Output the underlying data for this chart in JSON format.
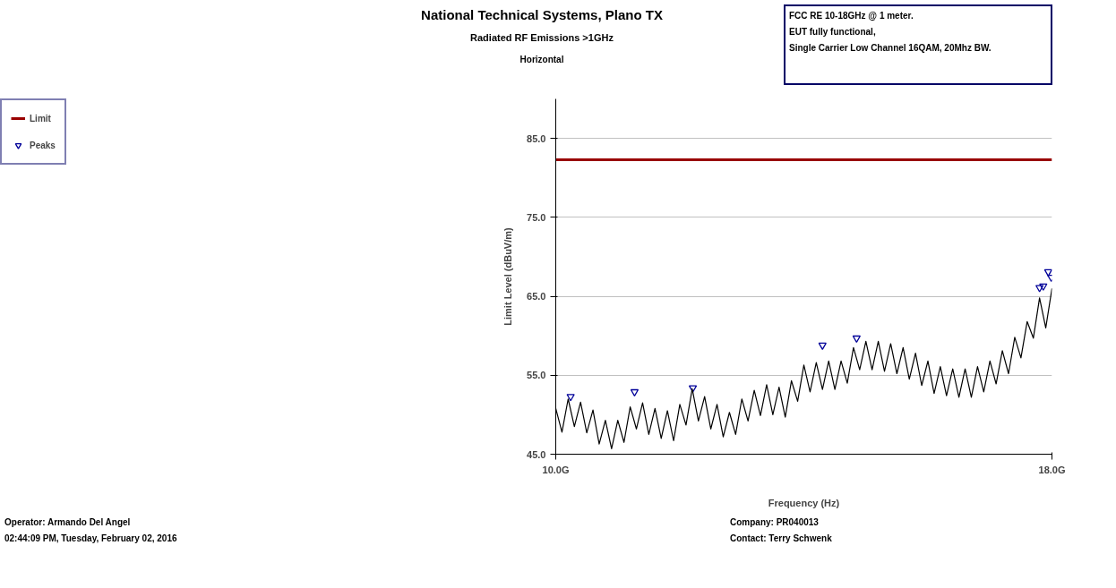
{
  "chart_data": {
    "type": "line",
    "title": "National Technical Systems, Plano TX",
    "subtitle": "Radiated RF Emissions >1GHz",
    "xlabel": "Frequency (Hz)",
    "ylabel": "Limit Level (dBuV/m)",
    "xlim": [
      10.0,
      18.0
    ],
    "xticks": [
      {
        "value": 10.0,
        "label": "10.0G"
      },
      {
        "value": 18.0,
        "label": "18.0G"
      }
    ],
    "ylim": [
      45.0,
      90.0
    ],
    "yticks": [
      {
        "value": 45,
        "label": "45.0"
      },
      {
        "value": 55,
        "label": "55.0"
      },
      {
        "value": 65,
        "label": "65.0"
      },
      {
        "value": 75,
        "label": "75.0"
      },
      {
        "value": 85,
        "label": "85.0"
      }
    ],
    "grid": "y",
    "legend": "top left",
    "series": [
      {
        "name": "Limit",
        "color": "#990000",
        "x": [
          10.0,
          18.0
        ],
        "values": [
          82.3,
          82.3
        ]
      },
      {
        "name": "Peaks",
        "type": "scatter",
        "marker": "triangle",
        "color": "#000099",
        "x": [
          10.24,
          11.27,
          12.21,
          14.3,
          14.85,
          17.8,
          17.86,
          17.94,
          17.99
        ],
        "values": [
          52.3,
          52.9,
          53.4,
          58.8,
          59.7,
          66.1,
          66.3,
          68.1,
          67.4
        ]
      },
      {
        "color": "#000000",
        "x": [
          10.0,
          10.1,
          10.2,
          10.3,
          10.4,
          10.5,
          10.6,
          10.7,
          10.8,
          10.9,
          11.0,
          11.1,
          11.2,
          11.3,
          11.4,
          11.5,
          11.6,
          11.7,
          11.8,
          11.9,
          12.0,
          12.1,
          12.2,
          12.3,
          12.4,
          12.5,
          12.6,
          12.7,
          12.8,
          12.9,
          13.0,
          13.1,
          13.2,
          13.3,
          13.4,
          13.5,
          13.6,
          13.7,
          13.8,
          13.9,
          14.0,
          14.1,
          14.2,
          14.3,
          14.4,
          14.5,
          14.6,
          14.7,
          14.8,
          14.9,
          15.0,
          15.1,
          15.2,
          15.3,
          15.4,
          15.5,
          15.6,
          15.7,
          15.8,
          15.9,
          16.0,
          16.1,
          16.2,
          16.3,
          16.4,
          16.5,
          16.6,
          16.7,
          16.8,
          16.9,
          17.0,
          17.1,
          17.2,
          17.3,
          17.4,
          17.5,
          17.6,
          17.7,
          17.8,
          17.9,
          18.0
        ],
        "values": [
          50.8,
          47.8,
          52.0,
          48.5,
          51.6,
          47.7,
          50.6,
          46.3,
          49.3,
          45.7,
          49.3,
          46.5,
          51.0,
          48.2,
          51.5,
          47.5,
          50.8,
          47.0,
          50.5,
          46.7,
          51.3,
          48.7,
          53.3,
          49.2,
          52.3,
          48.2,
          51.3,
          47.2,
          50.3,
          47.5,
          52.0,
          49.2,
          53.1,
          49.9,
          53.8,
          50.0,
          53.5,
          49.7,
          54.3,
          51.7,
          56.3,
          52.9,
          56.6,
          53.2,
          56.8,
          53.2,
          56.8,
          54.0,
          58.5,
          55.7,
          59.3,
          55.7,
          59.3,
          55.5,
          59.0,
          55.2,
          58.5,
          54.5,
          57.8,
          53.7,
          56.8,
          52.7,
          56.1,
          52.4,
          55.8,
          52.2,
          55.8,
          52.2,
          56.1,
          52.9,
          56.8,
          53.9,
          58.1,
          55.2,
          59.8,
          57.2,
          61.8,
          59.7,
          64.8,
          61.0,
          66.0
        ]
      }
    ],
    "annotations": [
      "Horizontal",
      "FCC RE 10-18GHz @ 1 meter.",
      "EUT fully functional,",
      "Single Carrier Low Channel 16QAM, 20Mhz BW.",
      "Operator: Armando Del Angel",
      "02:44:09 PM, Tuesday, February 02, 2016",
      "Company: PR040013",
      "Contact: Terry Schwenk"
    ]
  }
}
